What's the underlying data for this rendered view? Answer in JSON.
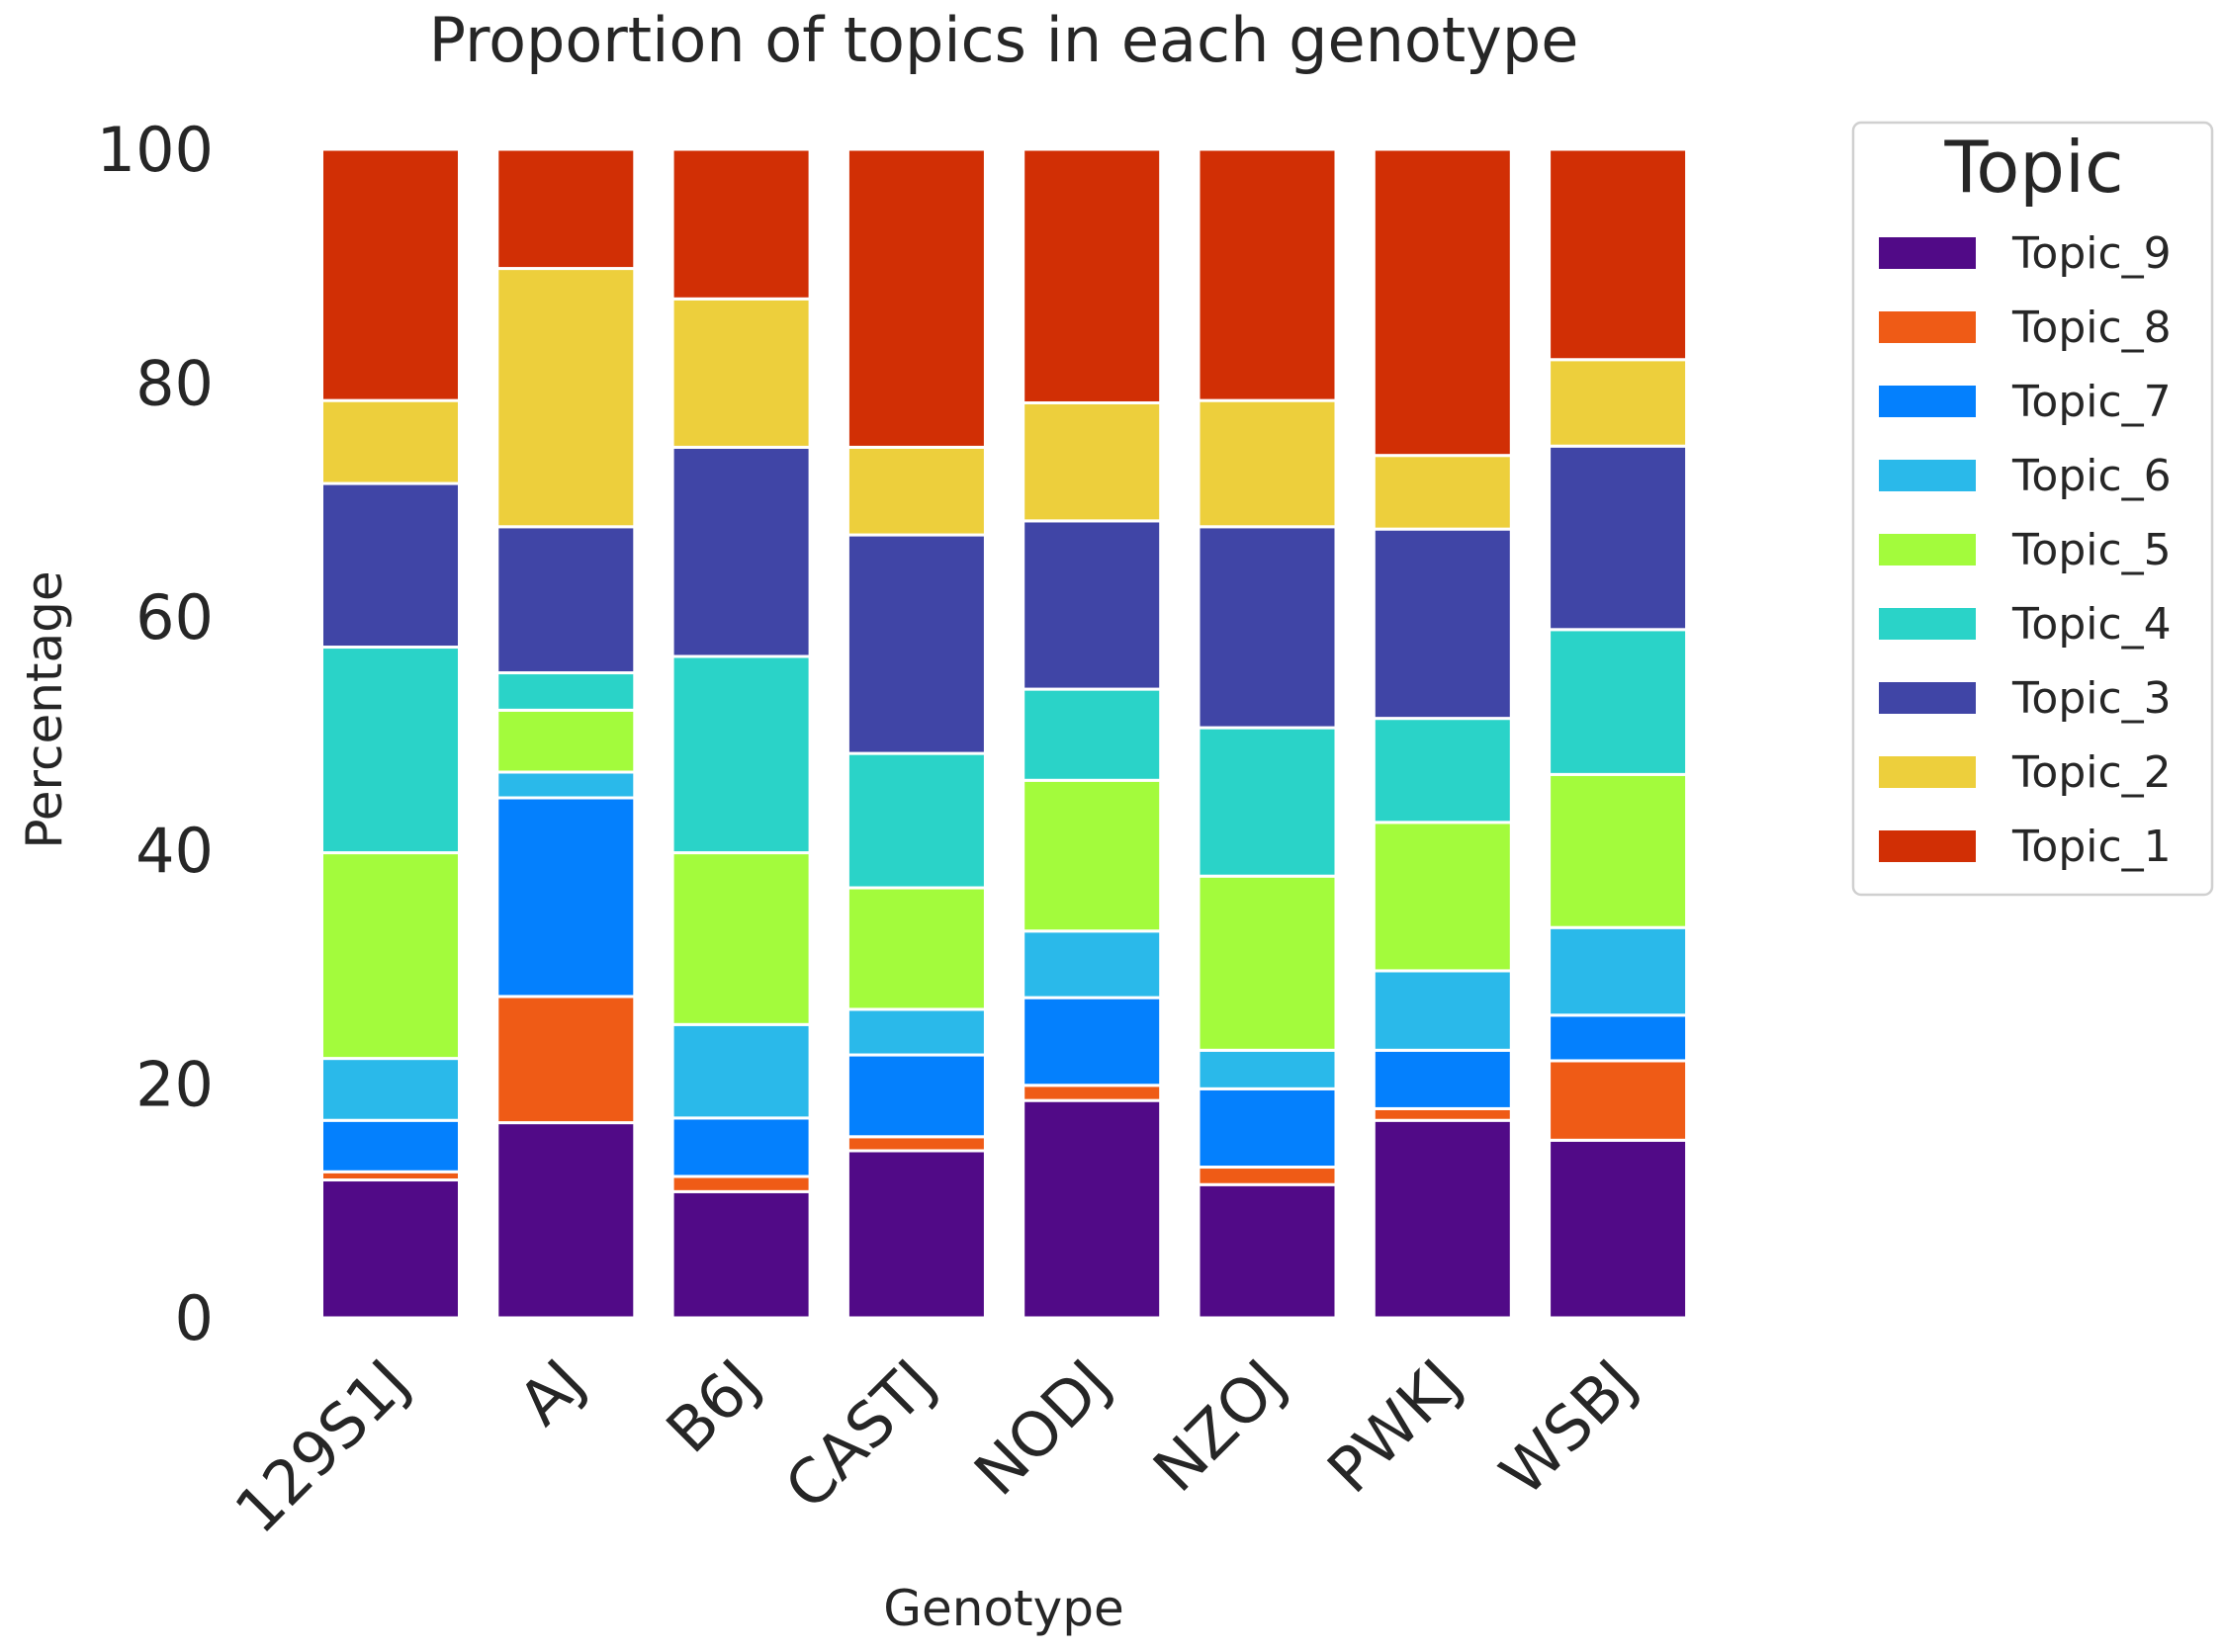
{
  "chart_data": {
    "type": "bar",
    "stacked": true,
    "title": "Proportion of topics in each genotype",
    "xlabel": "Genotype",
    "ylabel": "Percentage",
    "ylim": [
      0,
      100
    ],
    "yticks": [
      0,
      20,
      40,
      60,
      80,
      100
    ],
    "grid": false,
    "categories": [
      "129S1J",
      "AJ",
      "B6J",
      "CASTJ",
      "NODJ",
      "NZOJ",
      "PWKJ",
      "WSBJ"
    ],
    "legend": {
      "title": "Topic",
      "placement": "outside-right"
    },
    "series": [
      {
        "name": "Topic_9",
        "color": "#510a87",
        "values": [
          11.8,
          16.7,
          10.8,
          14.3,
          18.6,
          11.4,
          16.9,
          15.2
        ]
      },
      {
        "name": "Topic_8",
        "color": "#ef5b16",
        "values": [
          0.7,
          10.8,
          1.3,
          1.2,
          1.3,
          1.5,
          1.0,
          6.8
        ]
      },
      {
        "name": "Topic_7",
        "color": "#0480fd",
        "values": [
          4.4,
          17.0,
          5.0,
          7.0,
          7.5,
          6.7,
          5.0,
          3.9
        ]
      },
      {
        "name": "Topic_6",
        "color": "#2ab9ea",
        "values": [
          5.3,
          2.2,
          8.0,
          3.9,
          5.7,
          3.3,
          6.8,
          7.5
        ]
      },
      {
        "name": "Topic_5",
        "color": "#a3fb3c",
        "values": [
          17.6,
          5.3,
          14.7,
          10.4,
          12.9,
          14.9,
          12.7,
          13.1
        ]
      },
      {
        "name": "Topic_4",
        "color": "#2ad3c8",
        "values": [
          17.6,
          3.2,
          16.8,
          11.5,
          7.8,
          12.7,
          8.9,
          12.4
        ]
      },
      {
        "name": "Topic_3",
        "color": "#4045a6",
        "values": [
          14.0,
          12.5,
          17.9,
          18.7,
          14.4,
          17.2,
          16.2,
          15.7
        ]
      },
      {
        "name": "Topic_2",
        "color": "#edcf3c",
        "values": [
          7.1,
          22.1,
          12.7,
          7.5,
          10.1,
          10.8,
          6.3,
          7.4
        ]
      },
      {
        "name": "Topic_1",
        "color": "#d12f05",
        "values": [
          21.5,
          10.2,
          12.8,
          25.5,
          21.7,
          21.5,
          26.2,
          18.0
        ]
      }
    ]
  }
}
